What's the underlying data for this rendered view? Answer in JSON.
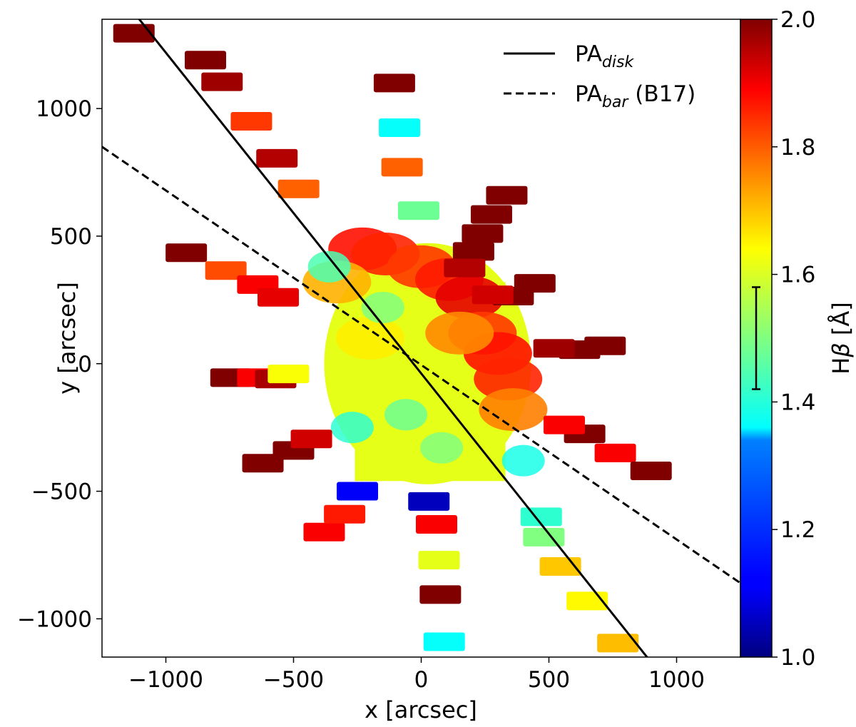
{
  "chart_data": {
    "type": "scatter",
    "title": "",
    "xlabel": "x [arcsec]",
    "ylabel": "y [arcsec]",
    "xlim": [
      -1250,
      1250
    ],
    "ylim": [
      -1150,
      1350
    ],
    "xticks": [
      -1000,
      -500,
      0,
      500,
      1000
    ],
    "yticks": [
      -1000,
      -500,
      0,
      500,
      1000
    ],
    "xtick_labels": [
      "−1000",
      "−500",
      "0",
      "500",
      "1000"
    ],
    "ytick_labels": [
      "−1000",
      "−500",
      "0",
      "500",
      "1000"
    ],
    "colorbar": {
      "label_main": "H",
      "label_greek": "β",
      "label_unit": "[Å]",
      "range": [
        1.0,
        2.0
      ],
      "ticks": [
        1.0,
        1.2,
        1.4,
        1.6,
        1.8,
        2.0
      ],
      "tick_labels": [
        "1.0",
        "1.2",
        "1.4",
        "1.6",
        "1.8",
        "2.0"
      ],
      "colormap": "jet",
      "error_bar": [
        1.42,
        1.58
      ]
    },
    "legend": {
      "placement": "top-right",
      "entries": [
        {
          "label": "PA",
          "sub": "disk",
          "suffix": "",
          "style": "solid"
        },
        {
          "label": "PA",
          "sub": "bar",
          "suffix": " (B17)",
          "style": "dashed"
        }
      ]
    },
    "lines": [
      {
        "name": "PA_disk",
        "style": "solid",
        "x": [
          -1120,
          900
        ],
        "y": [
          1370,
          -1170
        ]
      },
      {
        "name": "PA_bar (B17)",
        "style": "dashed",
        "x": [
          -1250,
          1250
        ],
        "y": [
          850,
          -860
        ]
      }
    ],
    "core_region": {
      "x_range": [
        -380,
        430
      ],
      "y_range": [
        -520,
        520
      ],
      "value": 1.6
    },
    "patches": [
      {
        "x": -1125,
        "y": 1295,
        "v": 2.0
      },
      {
        "x": -845,
        "y": 1190,
        "v": 2.0
      },
      {
        "x": -780,
        "y": 1105,
        "v": 1.97
      },
      {
        "x": -665,
        "y": 950,
        "v": 1.82
      },
      {
        "x": -565,
        "y": 805,
        "v": 1.95
      },
      {
        "x": -480,
        "y": 685,
        "v": 1.78
      },
      {
        "x": -105,
        "y": 1100,
        "v": 2.0
      },
      {
        "x": -85,
        "y": 925,
        "v": 1.38
      },
      {
        "x": -75,
        "y": 770,
        "v": 1.78
      },
      {
        "x": -10,
        "y": 600,
        "v": 1.48
      },
      {
        "x": -920,
        "y": 435,
        "v": 2.0
      },
      {
        "x": -765,
        "y": 365,
        "v": 1.8
      },
      {
        "x": -640,
        "y": 310,
        "v": 1.88
      },
      {
        "x": -560,
        "y": 260,
        "v": 1.9
      },
      {
        "x": -745,
        "y": -55,
        "v": 2.0
      },
      {
        "x": -640,
        "y": -55,
        "v": 1.88
      },
      {
        "x": -570,
        "y": -60,
        "v": 1.96
      },
      {
        "x": -520,
        "y": -40,
        "v": 1.62
      },
      {
        "x": -620,
        "y": -390,
        "v": 2.0
      },
      {
        "x": -500,
        "y": -340,
        "v": 2.0
      },
      {
        "x": -430,
        "y": -295,
        "v": 1.92
      },
      {
        "x": -380,
        "y": -660,
        "v": 1.88
      },
      {
        "x": -300,
        "y": -590,
        "v": 1.85
      },
      {
        "x": -250,
        "y": -500,
        "v": 1.12
      },
      {
        "x": 30,
        "y": -540,
        "v": 1.06
      },
      {
        "x": 60,
        "y": -630,
        "v": 1.88
      },
      {
        "x": 70,
        "y": -770,
        "v": 1.6
      },
      {
        "x": 75,
        "y": -905,
        "v": 2.0
      },
      {
        "x": 90,
        "y": -1090,
        "v": 1.38
      },
      {
        "x": 335,
        "y": 660,
        "v": 2.0
      },
      {
        "x": 275,
        "y": 585,
        "v": 2.0
      },
      {
        "x": 240,
        "y": 510,
        "v": 2.0
      },
      {
        "x": 205,
        "y": 440,
        "v": 2.0
      },
      {
        "x": 170,
        "y": 375,
        "v": 1.95
      },
      {
        "x": 445,
        "y": 315,
        "v": 2.0
      },
      {
        "x": 360,
        "y": 265,
        "v": 2.0
      },
      {
        "x": 280,
        "y": 270,
        "v": 1.92
      },
      {
        "x": 720,
        "y": 70,
        "v": 2.0
      },
      {
        "x": 620,
        "y": 55,
        "v": 2.0
      },
      {
        "x": 520,
        "y": 60,
        "v": 1.97
      },
      {
        "x": 640,
        "y": -275,
        "v": 2.0
      },
      {
        "x": 560,
        "y": -240,
        "v": 1.88
      },
      {
        "x": 760,
        "y": -350,
        "v": 1.88
      },
      {
        "x": 900,
        "y": -420,
        "v": 2.0
      },
      {
        "x": 470,
        "y": -600,
        "v": 1.42
      },
      {
        "x": 480,
        "y": -680,
        "v": 1.5
      },
      {
        "x": 545,
        "y": -795,
        "v": 1.68
      },
      {
        "x": 650,
        "y": -930,
        "v": 1.63
      },
      {
        "x": 770,
        "y": -1095,
        "v": 1.69
      }
    ]
  }
}
